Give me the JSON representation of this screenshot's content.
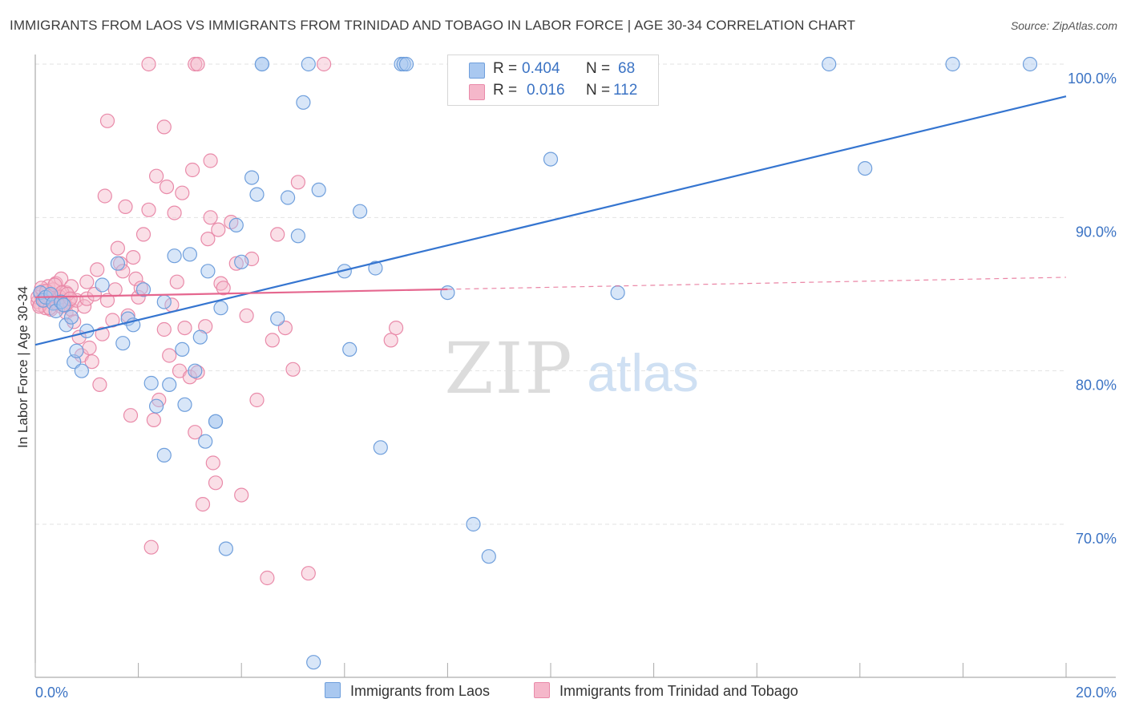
{
  "title": "IMMIGRANTS FROM LAOS VS IMMIGRANTS FROM TRINIDAD AND TOBAGO IN LABOR FORCE | AGE 30-34 CORRELATION CHART",
  "source": "Source: ZipAtlas.com",
  "watermark": {
    "zip": "ZIP",
    "atlas": "atlas"
  },
  "colors": {
    "blue_fill": "#a9c8f0",
    "blue_stroke": "#6f9fdc",
    "blue_line": "#3575d0",
    "pink_fill": "#f5b7ca",
    "pink_stroke": "#e98aa9",
    "pink_line": "#e5678f",
    "axis_text": "#3b73c4",
    "grid": "#e3e3e3"
  },
  "legend_box": {
    "rows": [
      {
        "r_label": "R =",
        "r_value": "0.404",
        "n_label": "N =",
        "n_value": "68"
      },
      {
        "r_label": "R =",
        "r_value": "0.016",
        "n_label": "N =",
        "n_value": "112"
      }
    ]
  },
  "bottom_legend": {
    "series1": "Immigrants from Laos",
    "series2": "Immigrants from Trinidad and Tobago"
  },
  "chart_data": {
    "type": "scatter",
    "title": "IMMIGRANTS FROM LAOS VS IMMIGRANTS FROM TRINIDAD AND TOBAGO IN LABOR FORCE | AGE 30-34 CORRELATION CHART",
    "xlabel": "",
    "ylabel": "In Labor Force | Age 30-34",
    "xlim": [
      0,
      20
    ],
    "ylim": [
      60,
      101
    ],
    "x_tick_labels": [
      "0.0%",
      "20.0%"
    ],
    "y_ticks": [
      70,
      80,
      90,
      100
    ],
    "y_tick_labels": [
      "70.0%",
      "80.0%",
      "90.0%",
      "100.0%"
    ],
    "grid": true,
    "legend_position": "top-center",
    "series": [
      {
        "name": "Immigrants from Laos",
        "R": 0.404,
        "N": 68,
        "trend": {
          "x": [
            0,
            20
          ],
          "y": [
            81.7,
            97.9
          ],
          "dashed_from": null
        },
        "points": [
          [
            0.1,
            85.1
          ],
          [
            0.15,
            84.6
          ],
          [
            0.2,
            84.8
          ],
          [
            0.3,
            85.0
          ],
          [
            0.35,
            84.4
          ],
          [
            0.4,
            83.9
          ],
          [
            0.5,
            84.5
          ],
          [
            0.55,
            84.3
          ],
          [
            0.6,
            83.0
          ],
          [
            0.7,
            83.5
          ],
          [
            0.75,
            80.6
          ],
          [
            0.8,
            81.3
          ],
          [
            0.9,
            80.0
          ],
          [
            1.0,
            82.6
          ],
          [
            1.3,
            85.6
          ],
          [
            1.6,
            87.0
          ],
          [
            1.7,
            81.8
          ],
          [
            1.8,
            83.4
          ],
          [
            1.9,
            83.0
          ],
          [
            2.1,
            85.3
          ],
          [
            2.25,
            79.2
          ],
          [
            2.35,
            77.7
          ],
          [
            2.5,
            74.5
          ],
          [
            2.5,
            84.5
          ],
          [
            2.6,
            79.1
          ],
          [
            2.7,
            87.5
          ],
          [
            2.85,
            81.4
          ],
          [
            2.9,
            77.8
          ],
          [
            3.0,
            87.6
          ],
          [
            3.1,
            80.0
          ],
          [
            3.2,
            82.2
          ],
          [
            3.3,
            75.4
          ],
          [
            3.35,
            86.5
          ],
          [
            3.5,
            76.7
          ],
          [
            3.5,
            76.7
          ],
          [
            3.6,
            84.1
          ],
          [
            3.7,
            68.4
          ],
          [
            3.9,
            89.5
          ],
          [
            4.0,
            87.1
          ],
          [
            4.2,
            92.6
          ],
          [
            4.3,
            91.5
          ],
          [
            4.4,
            100.0
          ],
          [
            4.4,
            100.0
          ],
          [
            4.7,
            83.4
          ],
          [
            4.9,
            91.3
          ],
          [
            5.1,
            88.8
          ],
          [
            5.2,
            97.5
          ],
          [
            5.3,
            100.0
          ],
          [
            5.4,
            61.0
          ],
          [
            5.5,
            91.8
          ],
          [
            6.0,
            86.5
          ],
          [
            6.1,
            81.4
          ],
          [
            6.3,
            90.4
          ],
          [
            6.6,
            86.7
          ],
          [
            6.7,
            75.0
          ],
          [
            7.1,
            100.0
          ],
          [
            7.15,
            100.0
          ],
          [
            7.2,
            100.0
          ],
          [
            8.0,
            85.1
          ],
          [
            8.5,
            70.0
          ],
          [
            8.6,
            100.0
          ],
          [
            8.8,
            67.9
          ],
          [
            10.0,
            93.8
          ],
          [
            11.3,
            85.1
          ],
          [
            15.4,
            100.0
          ],
          [
            16.1,
            93.2
          ],
          [
            17.8,
            100.0
          ],
          [
            19.3,
            100.0
          ]
        ]
      },
      {
        "name": "Immigrants from Trinidad and Tobago",
        "R": 0.016,
        "N": 112,
        "trend": {
          "x": [
            0,
            20
          ],
          "y": [
            84.8,
            86.1
          ],
          "dashed_from": 8.0
        },
        "points": [
          [
            0.05,
            84.5
          ],
          [
            0.1,
            85.0
          ],
          [
            0.1,
            84.3
          ],
          [
            0.15,
            85.2
          ],
          [
            0.2,
            84.8
          ],
          [
            0.2,
            84.1
          ],
          [
            0.25,
            85.5
          ],
          [
            0.3,
            84.7
          ],
          [
            0.3,
            84.0
          ],
          [
            0.35,
            85.3
          ],
          [
            0.4,
            84.4
          ],
          [
            0.4,
            85.7
          ],
          [
            0.45,
            84.9
          ],
          [
            0.5,
            84.2
          ],
          [
            0.5,
            86.0
          ],
          [
            0.55,
            84.6
          ],
          [
            0.6,
            83.8
          ],
          [
            0.6,
            85.1
          ],
          [
            0.65,
            84.5
          ],
          [
            0.7,
            84.0
          ],
          [
            0.7,
            85.5
          ],
          [
            0.75,
            83.2
          ],
          [
            0.8,
            84.6
          ],
          [
            0.85,
            82.2
          ],
          [
            0.9,
            81.0
          ],
          [
            0.95,
            84.2
          ],
          [
            1.0,
            84.7
          ],
          [
            1.0,
            85.8
          ],
          [
            1.05,
            81.5
          ],
          [
            1.1,
            80.6
          ],
          [
            1.15,
            85.0
          ],
          [
            1.2,
            86.6
          ],
          [
            1.25,
            79.1
          ],
          [
            1.3,
            82.4
          ],
          [
            1.35,
            91.4
          ],
          [
            1.4,
            84.6
          ],
          [
            1.5,
            83.3
          ],
          [
            1.55,
            85.3
          ],
          [
            1.6,
            88.0
          ],
          [
            1.65,
            87.0
          ],
          [
            1.7,
            86.5
          ],
          [
            1.75,
            90.7
          ],
          [
            1.8,
            83.6
          ],
          [
            1.85,
            77.1
          ],
          [
            1.9,
            87.4
          ],
          [
            1.95,
            86.0
          ],
          [
            2.0,
            84.8
          ],
          [
            2.05,
            85.4
          ],
          [
            2.1,
            88.9
          ],
          [
            2.2,
            90.5
          ],
          [
            2.25,
            68.5
          ],
          [
            2.3,
            76.8
          ],
          [
            2.35,
            92.7
          ],
          [
            2.4,
            78.1
          ],
          [
            2.5,
            82.7
          ],
          [
            2.55,
            92.0
          ],
          [
            2.6,
            81.0
          ],
          [
            2.65,
            84.3
          ],
          [
            2.7,
            90.3
          ],
          [
            2.75,
            85.8
          ],
          [
            2.8,
            80.0
          ],
          [
            2.85,
            91.6
          ],
          [
            2.9,
            82.8
          ],
          [
            3.0,
            79.6
          ],
          [
            3.05,
            93.1
          ],
          [
            3.1,
            76.0
          ],
          [
            3.15,
            79.9
          ],
          [
            3.25,
            71.3
          ],
          [
            3.3,
            82.9
          ],
          [
            3.35,
            88.6
          ],
          [
            3.4,
            90.0
          ],
          [
            3.45,
            74.0
          ],
          [
            3.5,
            72.7
          ],
          [
            3.55,
            89.2
          ],
          [
            3.6,
            85.7
          ],
          [
            3.65,
            85.4
          ],
          [
            3.8,
            89.7
          ],
          [
            3.9,
            87.0
          ],
          [
            4.0,
            71.9
          ],
          [
            4.1,
            83.6
          ],
          [
            4.2,
            87.3
          ],
          [
            4.3,
            78.1
          ],
          [
            4.5,
            66.5
          ],
          [
            4.6,
            82.0
          ],
          [
            4.7,
            88.9
          ],
          [
            4.85,
            82.8
          ],
          [
            5.0,
            80.1
          ],
          [
            5.1,
            92.3
          ],
          [
            5.3,
            66.8
          ],
          [
            5.6,
            100.0
          ],
          [
            6.9,
            82.0
          ],
          [
            7.0,
            82.8
          ],
          [
            0.05,
            84.8
          ],
          [
            0.08,
            84.2
          ],
          [
            0.12,
            85.4
          ],
          [
            0.18,
            84.6
          ],
          [
            0.22,
            85.2
          ],
          [
            0.28,
            84.1
          ],
          [
            0.33,
            84.9
          ],
          [
            0.38,
            85.6
          ],
          [
            0.42,
            84.4
          ],
          [
            0.48,
            84.8
          ],
          [
            0.52,
            85.1
          ],
          [
            0.58,
            84.3
          ],
          [
            0.62,
            85.0
          ],
          [
            0.68,
            84.7
          ],
          [
            1.4,
            96.3
          ],
          [
            2.2,
            100.0
          ],
          [
            3.1,
            100.0
          ],
          [
            3.15,
            100.0
          ],
          [
            3.4,
            93.7
          ],
          [
            2.5,
            95.9
          ]
        ]
      }
    ]
  }
}
